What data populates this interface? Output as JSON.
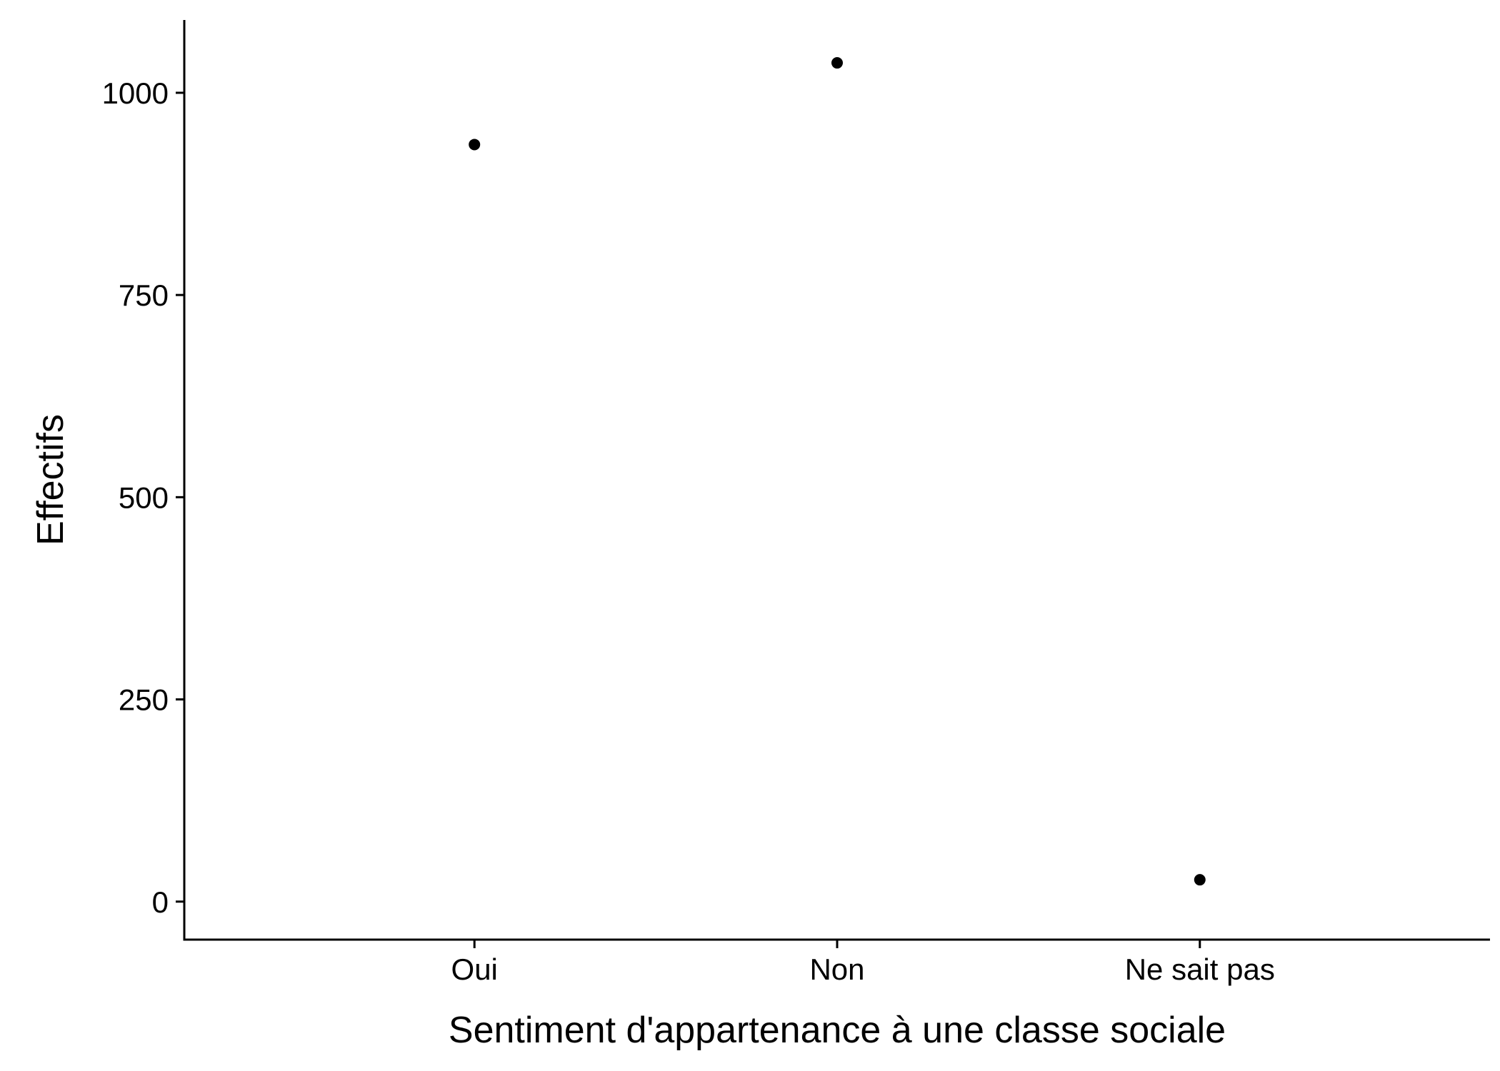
{
  "chart_data": {
    "type": "scatter",
    "categories": [
      "Oui",
      "Non",
      "Ne sait pas"
    ],
    "values": [
      936,
      1037,
      27
    ],
    "xlabel": "Sentiment d'appartenance à une classe sociale",
    "ylabel": "Effectifs",
    "ylim": [
      -47,
      1090
    ],
    "yticks": [
      0,
      250,
      500,
      750,
      1000
    ],
    "grid": false,
    "legend": "none",
    "point_color": "#000000"
  }
}
